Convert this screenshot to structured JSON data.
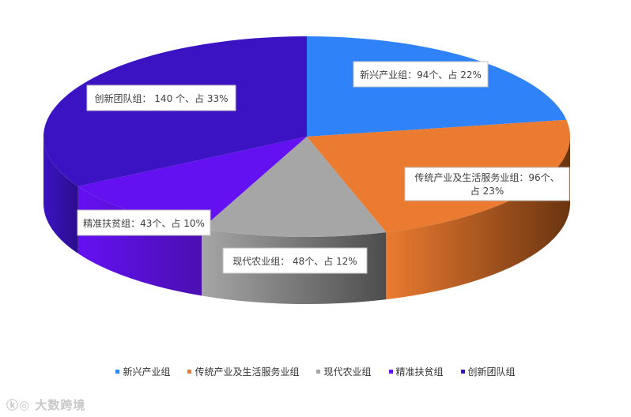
{
  "chart_data": {
    "type": "pie",
    "title": "",
    "categories": [
      "新兴产业组",
      "传统产业及生活服务业组",
      "现代农业组",
      "精准扶贫组",
      "创新团队组"
    ],
    "values": [
      94,
      96,
      48,
      43,
      140
    ],
    "percents": [
      22,
      23,
      12,
      10,
      33
    ],
    "labels": [
      "新兴产业组：94个、占 22%",
      "传统产业及生活服务业组：96个、占 23%",
      "现代农业组： 48个、占 12%",
      "精准扶贫组：43个、占 10%",
      "创新团队组： 140 个、占 33%"
    ],
    "colors": [
      "#2f82f7",
      "#ea7b30",
      "#a6a6a6",
      "#6411f2",
      "#3c13c3"
    ],
    "side_colors": [
      "#2a62b5",
      "#6a3410",
      "#4d4d4d",
      "#4a0fb0",
      "#2a0e8c"
    ],
    "legend_position": "bottom",
    "three_d": true
  },
  "watermark": "大数跨境"
}
